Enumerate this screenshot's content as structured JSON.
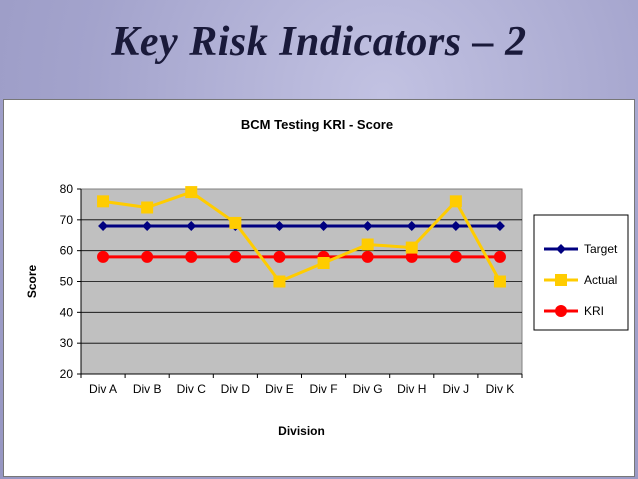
{
  "slide": {
    "title": "Key Risk Indicators – 2"
  },
  "chart_data": {
    "type": "line",
    "title": "BCM Testing KRI - Score",
    "xlabel": "Division",
    "ylabel": "Score",
    "categories": [
      "Div A",
      "Div B",
      "Div C",
      "Div D",
      "Div E",
      "Div F",
      "Div G",
      "Div H",
      "Div J",
      "Div K"
    ],
    "ylim": [
      20,
      80
    ],
    "yticks": [
      20,
      30,
      40,
      50,
      60,
      70,
      80
    ],
    "grid": true,
    "plot_background": "#c0c0c0",
    "legend_position": "right",
    "series": [
      {
        "name": "Target",
        "color": "#000080",
        "marker": "diamond",
        "values": [
          68,
          68,
          68,
          68,
          68,
          68,
          68,
          68,
          68,
          68
        ]
      },
      {
        "name": "Actual",
        "color": "#ffcc00",
        "marker": "square",
        "values": [
          76,
          74,
          79,
          69,
          50,
          56,
          62,
          61,
          76,
          50
        ]
      },
      {
        "name": "KRI",
        "color": "#ff0000",
        "marker": "circle",
        "values": [
          58,
          58,
          58,
          58,
          58,
          58,
          58,
          58,
          58,
          58
        ]
      }
    ]
  }
}
